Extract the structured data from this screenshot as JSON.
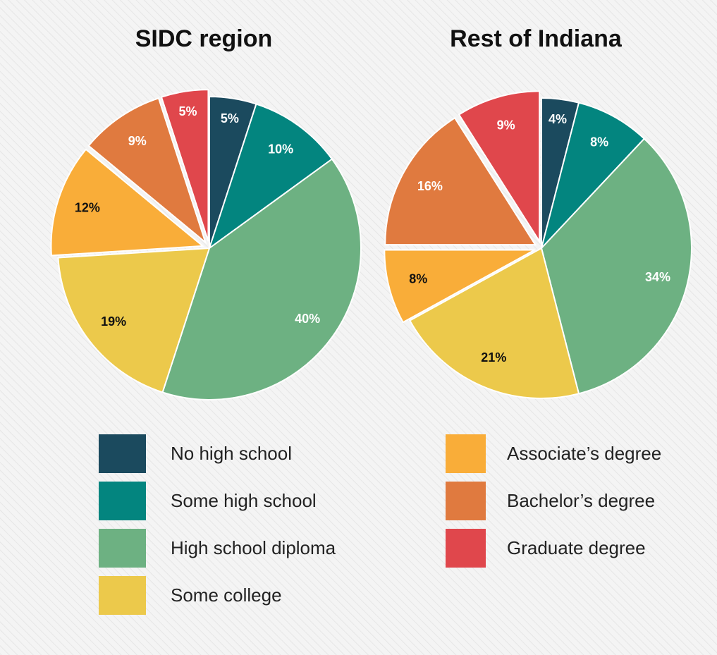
{
  "legend": {
    "categories": [
      "No high school",
      "Some high school",
      "High school diploma",
      "Some college",
      "Associate’s degree",
      "Bachelor’s degree",
      "Graduate degree"
    ],
    "colors": [
      "#1b4a5e",
      "#03857f",
      "#6db182",
      "#ecc94b",
      "#f9ad39",
      "#e07a3f",
      "#e0474c"
    ]
  },
  "chart_data": [
    {
      "type": "pie",
      "title": "SIDC region",
      "values": [
        5,
        10,
        40,
        19,
        12,
        9,
        5
      ],
      "value_labels": [
        "5%",
        "10%",
        "40%",
        "19%",
        "12%",
        "9%",
        "5%"
      ],
      "explode": [
        false,
        false,
        false,
        false,
        true,
        true,
        true
      ]
    },
    {
      "type": "pie",
      "title": "Rest of Indiana",
      "values": [
        4,
        8,
        34,
        21,
        8,
        16,
        9
      ],
      "value_labels": [
        "4%",
        "8%",
        "34%",
        "21%",
        "8%",
        "16%",
        "9%"
      ],
      "explode": [
        false,
        false,
        false,
        false,
        true,
        true,
        true
      ]
    }
  ]
}
